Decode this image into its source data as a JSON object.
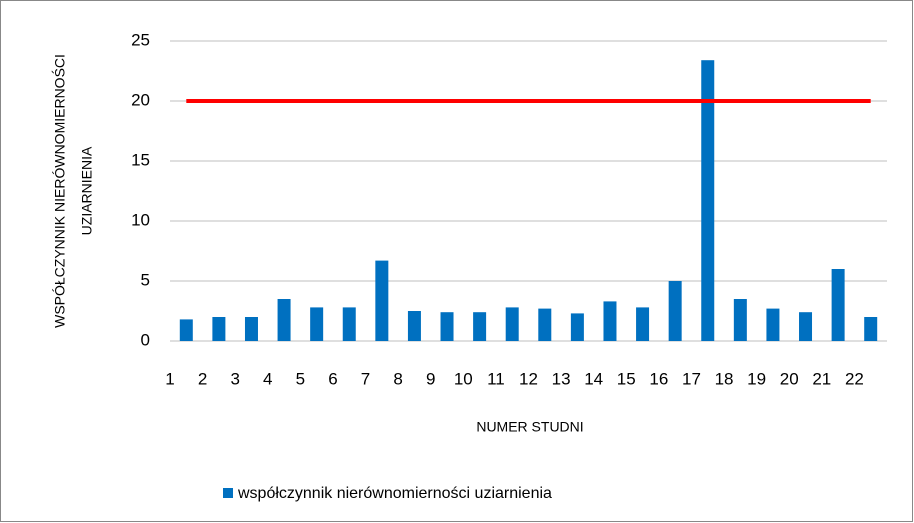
{
  "chart_data": {
    "type": "bar",
    "xlabel": "NUMER STUDNI",
    "ylabel": [
      "WSPÓŁCZYNNIK NIERÓWNOMIERNOŚCI",
      "UZIARNIENIA"
    ],
    "categories": [
      "1",
      "2",
      "3",
      "4",
      "5",
      "6",
      "7",
      "8",
      "9",
      "10",
      "11",
      "12",
      "13",
      "14",
      "15",
      "16",
      "17",
      "18",
      "19",
      "20",
      "21",
      "22"
    ],
    "series": [
      {
        "name": "współczynnik nierównomierności uziarnienia",
        "color": "#0070c0",
        "values": [
          1.8,
          2.0,
          2.0,
          3.5,
          2.8,
          2.8,
          6.7,
          2.5,
          2.4,
          2.4,
          2.8,
          2.7,
          2.3,
          3.3,
          2.8,
          5.0,
          23.4,
          3.5,
          2.7,
          2.4,
          6.0,
          2.0
        ]
      }
    ],
    "reference_line": {
      "value": 20,
      "color": "#ff0000"
    },
    "ylim": [
      0,
      25
    ],
    "yticks": [
      0,
      5,
      10,
      15,
      20,
      25
    ],
    "grid": true,
    "legend": "bottom"
  }
}
